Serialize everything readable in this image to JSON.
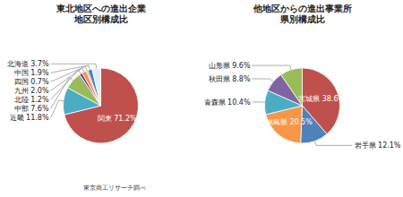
{
  "chart_data": [
    {
      "type": "pie",
      "title": "東北地区への進出企業\n地区別構成比",
      "categories": [
        "関東",
        "近畿",
        "中部",
        "北陸",
        "九州",
        "四国",
        "中国",
        "北海道"
      ],
      "values": [
        71.2,
        11.8,
        7.6,
        1.2,
        2.0,
        0.7,
        1.9,
        3.7
      ],
      "value_labels": [
        "71.2%",
        "11.8%",
        "7.6%",
        "1.2%",
        "2.0%",
        "0.7%",
        "1.9%",
        "3.7%"
      ],
      "colors": [
        "#c0504d",
        "#4bacc6",
        "#9bbb59",
        "#7030a0",
        "#f79646",
        "#d99694",
        "#4f81bd",
        "#daeef3"
      ],
      "data_labels": true,
      "annotations": [
        "東京商工リサーチ調べ"
      ]
    },
    {
      "type": "pie",
      "title": "他地区からの進出事業所\n県別構成比",
      "categories": [
        "宮城県",
        "岩手県",
        "福島県",
        "青森県",
        "秋田県",
        "山形県"
      ],
      "values": [
        38.6,
        12.1,
        20.5,
        10.4,
        8.8,
        9.6
      ],
      "value_labels": [
        "38.6%",
        "12.1%",
        "20.5%",
        "10.4%",
        "8.8%",
        "9.6%"
      ],
      "colors": [
        "#c0504d",
        "#4f81bd",
        "#f79646",
        "#4bacc6",
        "#8064a2",
        "#9bbb59"
      ],
      "data_labels": true
    }
  ]
}
